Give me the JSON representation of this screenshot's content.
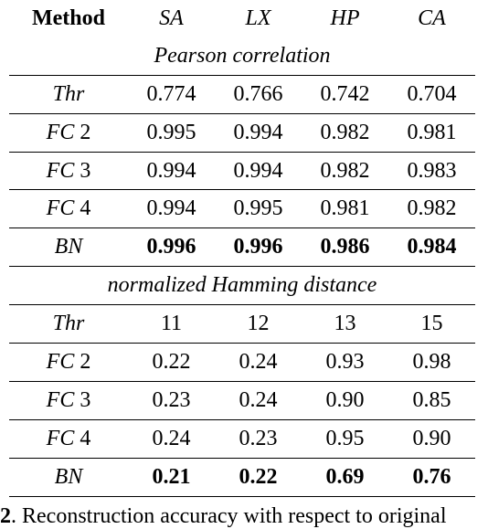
{
  "table": {
    "method_header": "Method",
    "columns": [
      "SA",
      "LX",
      "HP",
      "CA"
    ],
    "sections": [
      {
        "title": "Pearson correlation",
        "rows": [
          {
            "abbr": "Thr",
            "suffix": "",
            "values": [
              "0.774",
              "0.766",
              "0.742",
              "0.704"
            ]
          },
          {
            "abbr": "FC",
            "suffix": " 2",
            "values": [
              "0.995",
              "0.994",
              "0.982",
              "0.981"
            ]
          },
          {
            "abbr": "FC",
            "suffix": " 3",
            "values": [
              "0.994",
              "0.994",
              "0.982",
              "0.983"
            ]
          },
          {
            "abbr": "FC",
            "suffix": " 4",
            "values": [
              "0.994",
              "0.995",
              "0.981",
              "0.982"
            ]
          },
          {
            "abbr": "BN",
            "suffix": "",
            "values": [
              "0.996",
              "0.996",
              "0.986",
              "0.984"
            ],
            "best": true
          }
        ]
      },
      {
        "title": "normalized Hamming distance",
        "rows": [
          {
            "abbr": "Thr",
            "suffix": "",
            "values": [
              "11",
              "12",
              "13",
              "15"
            ]
          },
          {
            "abbr": "FC",
            "suffix": " 2",
            "values": [
              "0.22",
              "0.24",
              "0.93",
              "0.98"
            ]
          },
          {
            "abbr": "FC",
            "suffix": " 3",
            "values": [
              "0.23",
              "0.24",
              "0.90",
              "0.85"
            ]
          },
          {
            "abbr": "FC",
            "suffix": " 4",
            "values": [
              "0.24",
              "0.23",
              "0.95",
              "0.90"
            ]
          },
          {
            "abbr": "BN",
            "suffix": "",
            "values": [
              "0.21",
              "0.22",
              "0.69",
              "0.76"
            ],
            "best": true
          }
        ]
      }
    ]
  },
  "caption": {
    "number": "2",
    "text": "Reconstruction accuracy with respect to original"
  }
}
